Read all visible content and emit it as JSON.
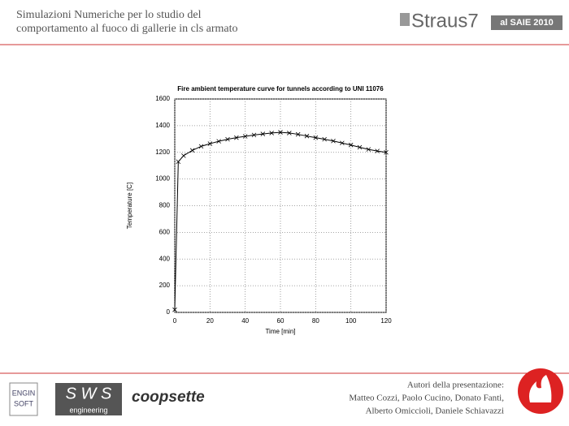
{
  "header": {
    "title_lines": [
      "Simulazioni Numeriche per lo studio del",
      "comportamento al fuoco di gallerie in cls armato"
    ],
    "logo": "Straus7",
    "badge": "al SAIE 2010"
  },
  "chart_data": {
    "type": "line",
    "title": "Fire ambient temperature curve for tunnels according to UNI 11076",
    "x_label": "Time [min]",
    "y_label": "Temperature [C]",
    "x": [
      0,
      2,
      5,
      10,
      15,
      20,
      25,
      30,
      35,
      40,
      45,
      50,
      55,
      60,
      65,
      70,
      75,
      80,
      85,
      90,
      95,
      100,
      105,
      110,
      115,
      120
    ],
    "series": [
      {
        "name": "UNI 11076",
        "color": "#000000",
        "values": [
          20,
          1130,
          1175,
          1215,
          1245,
          1265,
          1283,
          1298,
          1310,
          1320,
          1330,
          1338,
          1345,
          1350,
          1345,
          1335,
          1322,
          1310,
          1298,
          1285,
          1270,
          1255,
          1238,
          1222,
          1210,
          1200
        ]
      }
    ],
    "xlim": [
      0,
      120
    ],
    "xticks": [
      0,
      20,
      40,
      60,
      80,
      100,
      120
    ],
    "ylim": [
      0,
      1600
    ],
    "yticks": [
      0,
      200,
      400,
      600,
      800,
      1000,
      1200,
      1400,
      1600
    ],
    "grid": true
  },
  "footer": {
    "logos": [
      "ENGIN",
      "SOFT",
      "S W S",
      "engineering",
      "coopsette"
    ],
    "authors": [
      "Autori della presentazione:",
      "Matteo Cozzi, Paolo Cucino, Donato Fanti,",
      "Alberto Omiccioli, Daniele Schiavazzi"
    ]
  }
}
